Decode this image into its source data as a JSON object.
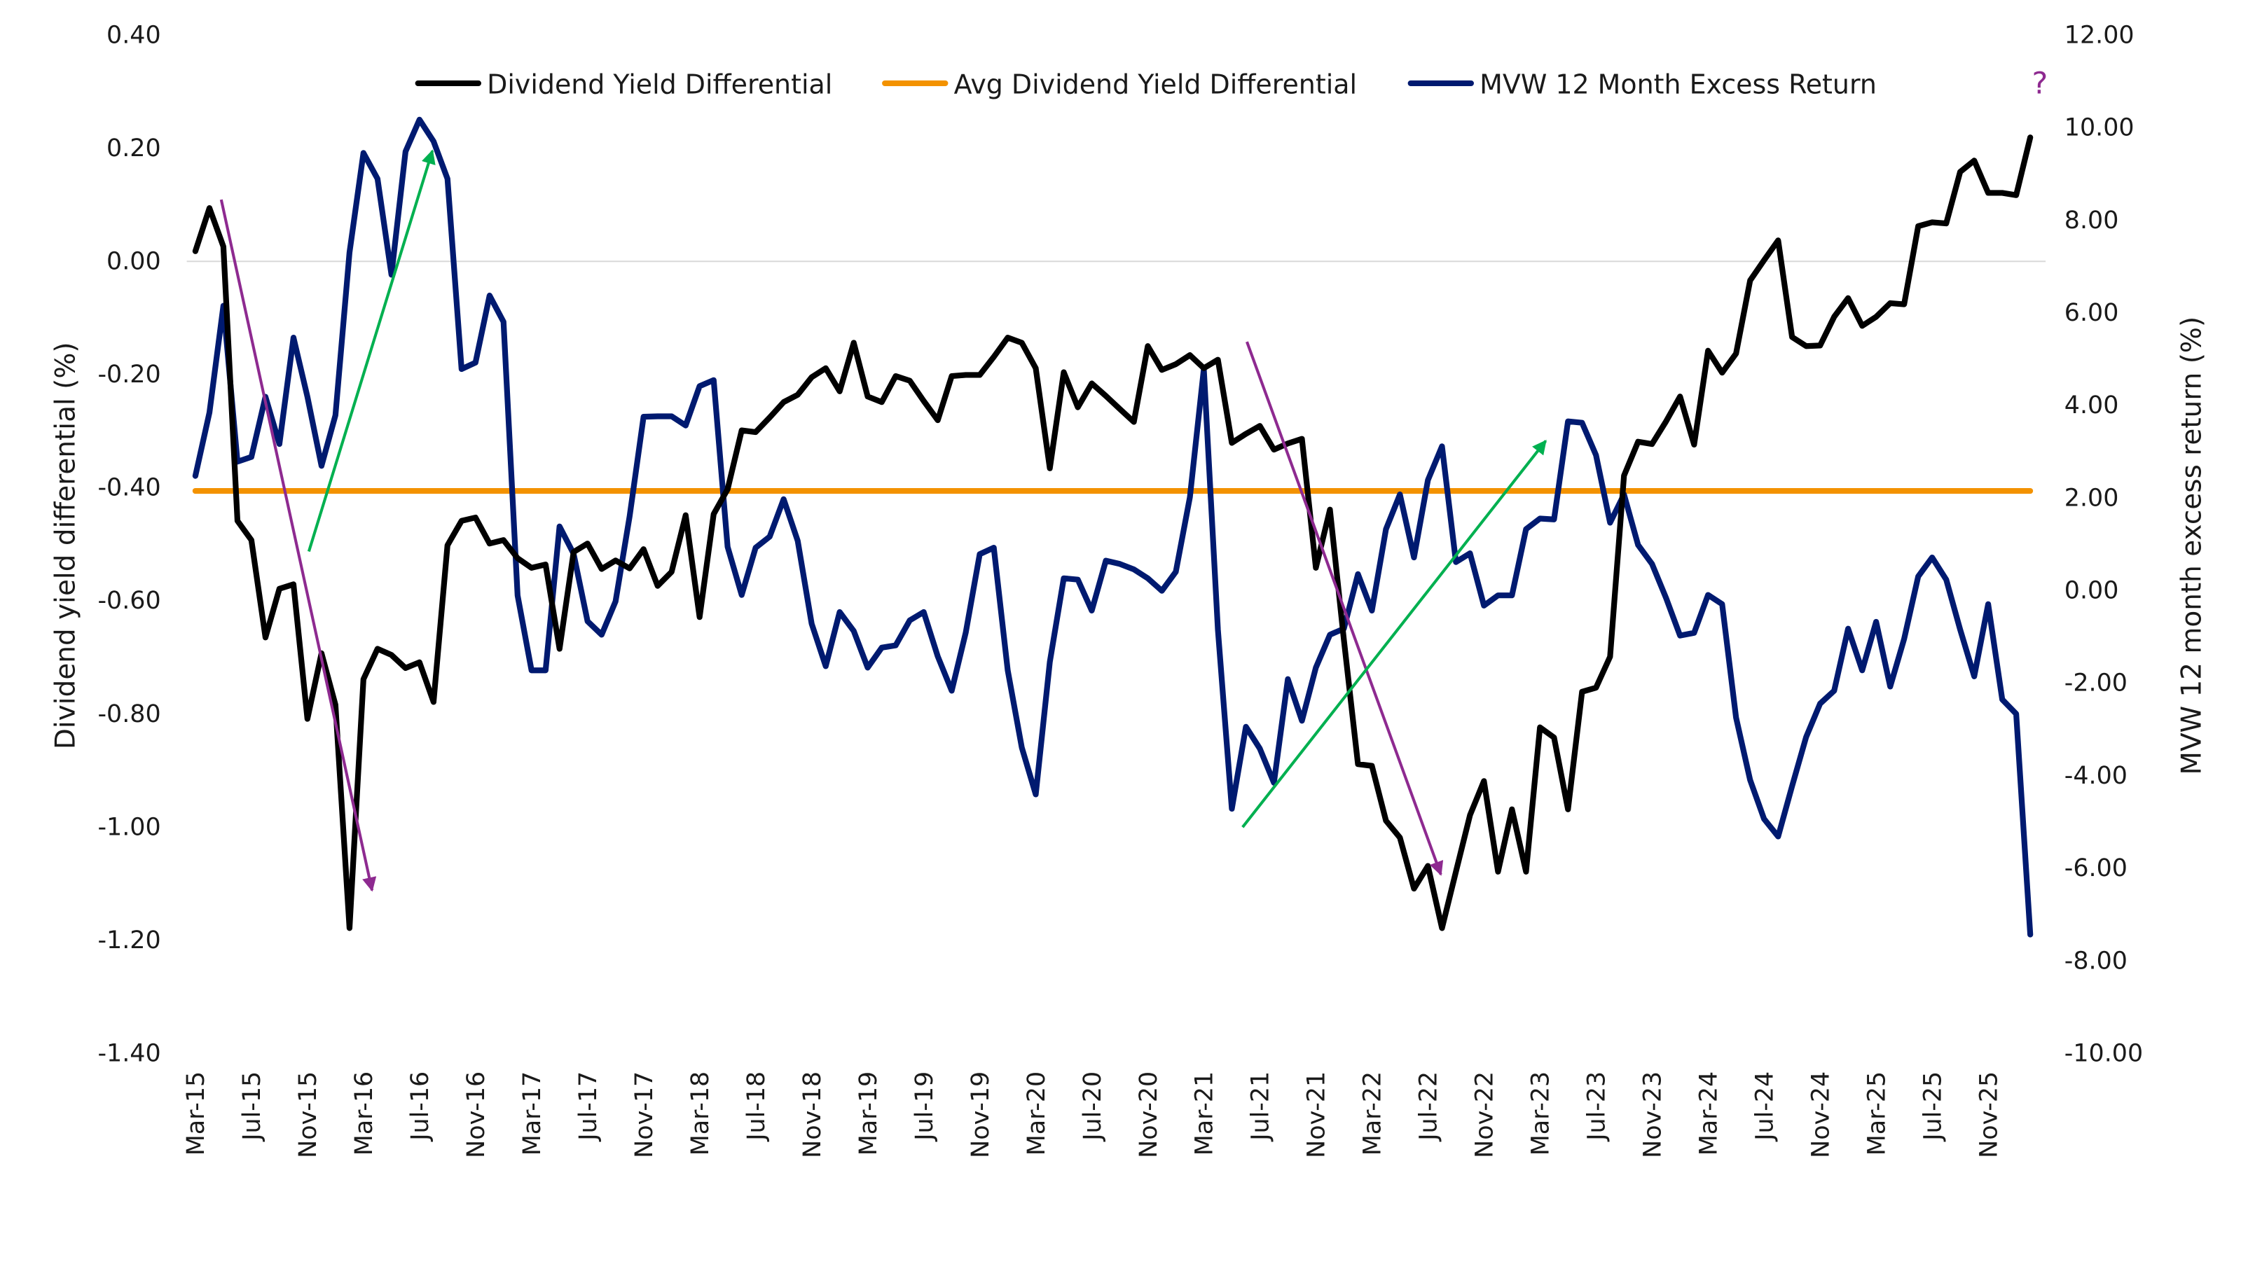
{
  "chart_data": {
    "type": "line",
    "title": "",
    "x": [
      "Mar-15",
      "Apr-15",
      "May-15",
      "Jun-15",
      "Jul-15",
      "Aug-15",
      "Sep-15",
      "Oct-15",
      "Nov-15",
      "Dec-15",
      "Jan-16",
      "Feb-16",
      "Mar-16",
      "Apr-16",
      "May-16",
      "Jun-16",
      "Jul-16",
      "Aug-16",
      "Sep-16",
      "Oct-16",
      "Nov-16",
      "Dec-16",
      "Jan-17",
      "Feb-17",
      "Mar-17",
      "Apr-17",
      "May-17",
      "Jun-17",
      "Jul-17",
      "Aug-17",
      "Sep-17",
      "Oct-17",
      "Nov-17",
      "Dec-17",
      "Jan-18",
      "Feb-18",
      "Mar-18",
      "Apr-18",
      "May-18",
      "Jun-18",
      "Jul-18",
      "Aug-18",
      "Sep-18",
      "Oct-18",
      "Nov-18",
      "Dec-18",
      "Jan-19",
      "Feb-19",
      "Mar-19",
      "Apr-19",
      "May-19",
      "Jun-19",
      "Jul-19",
      "Aug-19",
      "Sep-19",
      "Oct-19",
      "Nov-19",
      "Dec-19",
      "Jan-20",
      "Feb-20",
      "Mar-20",
      "Apr-20",
      "May-20",
      "Jun-20",
      "Jul-20",
      "Aug-20",
      "Sep-20",
      "Oct-20",
      "Nov-20",
      "Dec-20",
      "Jan-21",
      "Feb-21",
      "Mar-21",
      "Apr-21",
      "May-21",
      "Jun-21",
      "Jul-21",
      "Aug-21",
      "Sep-21",
      "Oct-21",
      "Nov-21",
      "Dec-21",
      "Jan-22",
      "Feb-22",
      "Mar-22",
      "Apr-22",
      "May-22",
      "Jun-22",
      "Jul-22",
      "Aug-22",
      "Sep-22",
      "Oct-22",
      "Nov-22",
      "Dec-22",
      "Jan-23",
      "Feb-23",
      "Mar-23",
      "Apr-23",
      "May-23",
      "Jun-23",
      "Jul-23",
      "Aug-23",
      "Sep-23",
      "Oct-23",
      "Nov-23",
      "Dec-23",
      "Jan-24",
      "Feb-24",
      "Mar-24",
      "Apr-24",
      "May-24",
      "Jun-24",
      "Jul-24",
      "Aug-24",
      "Sep-24",
      "Oct-24",
      "Nov-24",
      "Dec-24",
      "Jan-25",
      "Feb-25",
      "Mar-25",
      "Apr-25",
      "May-25",
      "Jun-25",
      "Jul-25",
      "Aug-25",
      "Sep-25",
      "Oct-25",
      "Nov-25",
      "Dec-25",
      "Jan-26",
      "Feb-26"
    ],
    "x_tick_labels": [
      "Mar-15",
      "Jul-15",
      "Nov-15",
      "Mar-16",
      "Jul-16",
      "Nov-16",
      "Mar-17",
      "Jul-17",
      "Nov-17",
      "Mar-18",
      "Jul-18",
      "Nov-18",
      "Mar-19",
      "Jul-19",
      "Nov-19",
      "Mar-20",
      "Jul-20",
      "Nov-20",
      "Mar-21",
      "Jul-21",
      "Nov-21",
      "Mar-22",
      "Jul-22",
      "Nov-22",
      "Mar-23",
      "Jul-23",
      "Nov-23",
      "Mar-24",
      "Jul-24",
      "Nov-24",
      "Mar-25",
      "Jul-25",
      "Nov-25"
    ],
    "ylabel": "Dividend yield differential (%)",
    "ylabel_right": "MVW 12 month excess return (%)",
    "ylim": [
      -1.4,
      0.4
    ],
    "ylim_right": [
      -10,
      12
    ],
    "y_ticks": [
      "0.40",
      "0.20",
      "0.00",
      "-0.20",
      "-0.40",
      "-0.60",
      "-0.80",
      "-1.00",
      "-1.20",
      "-1.40"
    ],
    "y_ticks_right": [
      "12.00",
      "10.00",
      "8.00",
      "6.00",
      "4.00",
      "2.00",
      "0.00",
      "-2.00",
      "-4.00",
      "-6.00",
      "-8.00",
      "-10.00"
    ],
    "grid": "zero line only",
    "legend_position": "top",
    "series": [
      {
        "name": "Dividend Yield Differential",
        "axis": "left",
        "color": "#000000",
        "values": [
          0.017,
          0.093,
          0.025,
          -0.46,
          -0.494,
          -0.666,
          -0.58,
          -0.572,
          -0.81,
          -0.694,
          -0.785,
          -1.18,
          -0.74,
          -0.686,
          -0.697,
          -0.72,
          -0.71,
          -0.78,
          -0.503,
          -0.46,
          -0.454,
          -0.5,
          -0.494,
          -0.526,
          -0.543,
          -0.537,
          -0.686,
          -0.515,
          -0.5,
          -0.545,
          -0.53,
          -0.544,
          -0.51,
          -0.575,
          -0.55,
          -0.45,
          -0.63,
          -0.448,
          -0.404,
          -0.3,
          -0.303,
          -0.277,
          -0.25,
          -0.237,
          -0.206,
          -0.19,
          -0.231,
          -0.145,
          -0.24,
          -0.25,
          -0.204,
          -0.212,
          -0.248,
          -0.282,
          -0.204,
          -0.202,
          -0.202,
          -0.17,
          -0.136,
          -0.145,
          -0.19,
          -0.367,
          -0.197,
          -0.259,
          -0.217,
          -0.239,
          -0.262,
          -0.285,
          -0.151,
          -0.193,
          -0.183,
          -0.167,
          -0.19,
          -0.175,
          -0.322,
          -0.306,
          -0.292,
          -0.334,
          -0.323,
          -0.315,
          -0.543,
          -0.44,
          -0.67,
          -0.89,
          -0.893,
          -0.99,
          -1.02,
          -1.11,
          -1.07,
          -1.18,
          -1.08,
          -0.98,
          -0.92,
          -1.08,
          -0.97,
          -1.08,
          -0.825,
          -0.843,
          -0.97,
          -0.762,
          -0.755,
          -0.7,
          -0.38,
          -0.32,
          -0.324,
          -0.284,
          -0.24,
          -0.325,
          -0.159,
          -0.198,
          -0.164,
          -0.035,
          0.001,
          0.036,
          -0.135,
          -0.151,
          -0.15,
          -0.099,
          -0.066,
          -0.115,
          -0.099,
          -0.075,
          -0.077,
          0.061,
          0.068,
          0.066,
          0.157,
          0.177,
          0.12,
          0.12,
          0.116,
          0.218
        ]
      },
      {
        "name": "Avg Dividend Yield Differential",
        "axis": "left",
        "color": "#F39200",
        "constant": -0.407
      },
      {
        "name": "MVW 12 Month Excess Return",
        "axis": "right",
        "color": "#001A70",
        "values": [
          2.46,
          3.83,
          6.14,
          2.77,
          2.87,
          4.17,
          3.15,
          5.45,
          4.17,
          2.68,
          3.77,
          7.29,
          9.44,
          8.88,
          6.81,
          9.47,
          10.16,
          9.69,
          8.88,
          4.77,
          4.91,
          6.36,
          5.79,
          -0.12,
          -1.74,
          -1.74,
          1.37,
          0.78,
          -0.68,
          -0.97,
          -0.25,
          1.59,
          3.74,
          3.75,
          3.75,
          3.55,
          4.4,
          4.53,
          0.93,
          -0.11,
          0.91,
          1.15,
          1.96,
          1.06,
          -0.73,
          -1.65,
          -0.48,
          -0.89,
          -1.68,
          -1.25,
          -1.2,
          -0.66,
          -0.48,
          -1.44,
          -2.18,
          -0.92,
          0.77,
          0.91,
          -1.74,
          -3.41,
          -4.42,
          -1.56,
          0.25,
          0.22,
          -0.45,
          0.63,
          0.56,
          0.44,
          0.25,
          -0.02,
          0.39,
          2.0,
          4.77,
          -0.86,
          -4.73,
          -2.96,
          -3.43,
          -4.17,
          -1.93,
          -2.83,
          -1.68,
          -0.97,
          -0.84,
          0.34,
          -0.45,
          1.31,
          2.06,
          0.7,
          2.37,
          3.1,
          0.6,
          0.79,
          -0.34,
          -0.12,
          -0.12,
          1.31,
          1.54,
          1.52,
          3.64,
          3.61,
          2.91,
          1.45,
          2.06,
          0.97,
          0.56,
          -0.18,
          -0.99,
          -0.93,
          -0.11,
          -0.31,
          -2.76,
          -4.11,
          -4.95,
          -5.33,
          -4.24,
          -3.18,
          -2.46,
          -2.18,
          -0.84,
          -1.74,
          -0.69,
          -2.09,
          -1.06,
          0.29,
          0.7,
          0.22,
          -0.86,
          -1.87,
          -0.31,
          -2.37,
          -2.68,
          -7.45
        ]
      }
    ],
    "annotations": {
      "arrow_colors": {
        "down": "#8E2A90",
        "up": "#00B050"
      },
      "question_mark": "?"
    }
  }
}
